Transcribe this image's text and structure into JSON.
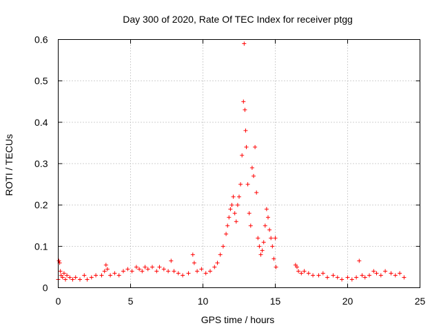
{
  "chart_data": {
    "type": "scatter",
    "title": "Day 300 of 2020, Rate Of TEC Index for receiver ptgg",
    "xlabel": "GPS time / hours",
    "ylabel": "ROTI / TECUs",
    "xlim": [
      0,
      25
    ],
    "ylim": [
      0,
      0.6
    ],
    "xticks": [
      "0",
      "5",
      "10",
      "15",
      "20",
      "25"
    ],
    "yticks": [
      "0",
      "0.1",
      "0.2",
      "0.3",
      "0.4",
      "0.5",
      "0.6"
    ],
    "grid": true,
    "marker": "+",
    "marker_color": "#ff0000",
    "series": [
      {
        "x": [
          0.0,
          0.05,
          0.1,
          0.15,
          0.2,
          0.3,
          0.4,
          0.5,
          0.6,
          0.8,
          1.0,
          1.2,
          1.5,
          1.8,
          2.0,
          2.3,
          2.6,
          3.0,
          3.2,
          3.3,
          3.4,
          3.6,
          3.9,
          4.2,
          4.5,
          4.8,
          5.1,
          5.4,
          5.6,
          5.8,
          6.0,
          6.2,
          6.5,
          6.8,
          7.0,
          7.3,
          7.6,
          7.8,
          8.0,
          8.3,
          8.6,
          9.0,
          9.3,
          9.4,
          9.6,
          9.9,
          10.2,
          10.5,
          10.8,
          11.0,
          11.2,
          11.4,
          11.6,
          11.7,
          11.8,
          11.9,
          12.0,
          12.1,
          12.2,
          12.3,
          12.4,
          12.5,
          12.6,
          12.7,
          12.8,
          12.85,
          12.9,
          12.95,
          13.0,
          13.1,
          13.2,
          13.3,
          13.4,
          13.5,
          13.6,
          13.7,
          13.8,
          13.9,
          14.0,
          14.1,
          14.2,
          14.3,
          14.4,
          14.5,
          14.6,
          14.7,
          14.8,
          14.9,
          15.0,
          15.05,
          16.4,
          16.5,
          16.6,
          16.8,
          17.0,
          17.3,
          17.6,
          18.0,
          18.3,
          18.6,
          19.0,
          19.3,
          19.6,
          20.0,
          20.3,
          20.6,
          20.8,
          21.0,
          21.2,
          21.5,
          21.8,
          22.0,
          22.3,
          22.6,
          23.0,
          23.3,
          23.6,
          23.9
        ],
        "y": [
          0.02,
          0.065,
          0.06,
          0.04,
          0.03,
          0.025,
          0.035,
          0.02,
          0.03,
          0.025,
          0.02,
          0.025,
          0.02,
          0.03,
          0.02,
          0.025,
          0.03,
          0.03,
          0.04,
          0.055,
          0.045,
          0.03,
          0.035,
          0.03,
          0.04,
          0.045,
          0.04,
          0.05,
          0.045,
          0.04,
          0.05,
          0.045,
          0.05,
          0.04,
          0.05,
          0.045,
          0.04,
          0.065,
          0.04,
          0.035,
          0.03,
          0.035,
          0.08,
          0.06,
          0.04,
          0.045,
          0.035,
          0.04,
          0.05,
          0.06,
          0.08,
          0.1,
          0.13,
          0.15,
          0.17,
          0.19,
          0.2,
          0.22,
          0.18,
          0.16,
          0.2,
          0.22,
          0.25,
          0.32,
          0.45,
          0.59,
          0.43,
          0.38,
          0.34,
          0.25,
          0.18,
          0.15,
          0.29,
          0.27,
          0.34,
          0.23,
          0.12,
          0.1,
          0.08,
          0.09,
          0.11,
          0.15,
          0.19,
          0.17,
          0.14,
          0.12,
          0.1,
          0.07,
          0.12,
          0.05,
          0.055,
          0.05,
          0.04,
          0.035,
          0.04,
          0.035,
          0.03,
          0.03,
          0.035,
          0.025,
          0.03,
          0.025,
          0.02,
          0.025,
          0.02,
          0.025,
          0.065,
          0.03,
          0.025,
          0.03,
          0.04,
          0.035,
          0.03,
          0.04,
          0.035,
          0.03,
          0.035,
          0.025
        ]
      }
    ]
  }
}
